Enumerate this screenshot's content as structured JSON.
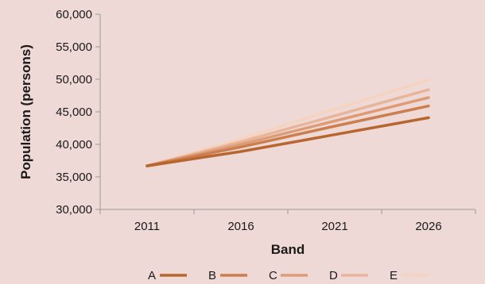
{
  "chart_data": {
    "type": "line",
    "xlabel": "Band",
    "ylabel": "Population (persons)",
    "x": [
      "2011",
      "2016",
      "2021",
      "2026"
    ],
    "ylim": [
      30000,
      60000
    ],
    "yticks": [
      30000,
      35000,
      40000,
      45000,
      50000,
      55000,
      60000
    ],
    "ytick_labels": [
      "30,000",
      "35,000",
      "40,000",
      "45,000",
      "50,000",
      "55,000",
      "60,000"
    ],
    "grid": false,
    "legend_position": "bottom",
    "series": [
      {
        "name": "A",
        "color": "#b8652e",
        "values": [
          36700,
          38900,
          41500,
          44100
        ]
      },
      {
        "name": "B",
        "color": "#cc7e4f",
        "values": [
          36700,
          39600,
          42800,
          45900
        ]
      },
      {
        "name": "C",
        "color": "#dd9b76",
        "values": [
          36700,
          40000,
          43600,
          47200
        ]
      },
      {
        "name": "D",
        "color": "#e8b59b",
        "values": [
          36700,
          40400,
          44400,
          48400
        ]
      },
      {
        "name": "E",
        "color": "#f5d4bf",
        "values": [
          36700,
          40800,
          45400,
          49900
        ]
      }
    ]
  }
}
